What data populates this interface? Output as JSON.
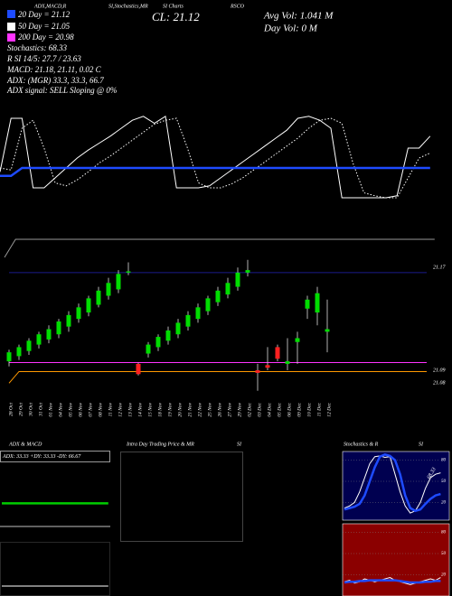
{
  "chart_data": [
    {
      "type": "candlestick",
      "annotations": [
        "20 Day = 21.12",
        "50 Day = 21.05",
        "200 Day = 20.98",
        "Stochastics: 68.33",
        "R SI 14/5: 27.7 / 23.63",
        "MACD: 21.18, 21.11, 0.02 C",
        "ADX: (MGR) 33.3, 33.3, 66.7",
        "ADX signal: SELL Sloping @ 0%",
        "CL: 21.12",
        "Avg Vol: 1.041 M",
        "Day Vol: 0 M",
        "ADX,MACD,R",
        "SI,Stochastics,MR",
        "SI Charts",
        "RSCO"
      ],
      "categories": [
        "28 Oct",
        "29 Oct",
        "30 Oct",
        "31 Oct",
        "01 Nov",
        "04 Nov",
        "05 Nov",
        "06 Nov",
        "07 Nov",
        "08 Nov",
        "11 Nov",
        "12 Nov",
        "13 Nov",
        "14 Nov",
        "15 Nov",
        "18 Nov",
        "19 Nov",
        "20 Nov",
        "21 Nov",
        "22 Nov",
        "25 Nov",
        "26 Nov",
        "27 Nov",
        "29 Nov",
        "02 Dec",
        "03 Dec",
        "04 Dec",
        "05 Dec",
        "06 Dec",
        "09 Dec",
        "10 Dec",
        "11 Dec",
        "12 Dec",
        null,
        null,
        null,
        null,
        null,
        null,
        null,
        null,
        null,
        null
      ],
      "open": [
        21.097,
        21.101,
        21.105,
        21.11,
        21.114,
        21.118,
        21.124,
        21.13,
        21.135,
        21.141,
        21.148,
        21.153,
        21.166,
        21.095,
        21.103,
        21.108,
        21.113,
        21.118,
        21.124,
        21.13,
        21.136,
        21.143,
        21.149,
        21.155,
        21.166,
        21.09,
        21.094,
        21.108,
        21.095,
        21.112,
        21.138,
        21.135,
        21.12,
        null,
        null,
        null,
        null,
        null,
        null,
        null,
        null,
        null,
        null
      ],
      "high": [
        21.106,
        21.11,
        21.115,
        21.12,
        21.125,
        21.13,
        21.136,
        21.142,
        21.148,
        21.155,
        21.162,
        21.168,
        21.174,
        21.096,
        21.112,
        21.118,
        21.124,
        21.13,
        21.136,
        21.142,
        21.148,
        21.155,
        21.162,
        21.17,
        21.176,
        21.095,
        21.108,
        21.11,
        21.115,
        21.12,
        21.148,
        21.155,
        21.145,
        null,
        null,
        null,
        null,
        null,
        null,
        null,
        null,
        null,
        null
      ],
      "low": [
        21.093,
        21.098,
        21.102,
        21.107,
        21.111,
        21.115,
        21.12,
        21.127,
        21.132,
        21.139,
        21.145,
        21.15,
        21.164,
        21.086,
        21.1,
        21.105,
        21.11,
        21.115,
        21.121,
        21.127,
        21.133,
        21.14,
        21.146,
        21.152,
        21.163,
        21.074,
        21.09,
        21.097,
        21.09,
        21.095,
        21.13,
        21.125,
        21.104,
        null,
        null,
        null,
        null,
        null,
        null,
        null,
        null,
        null,
        null
      ],
      "close": [
        21.104,
        21.108,
        21.113,
        21.118,
        21.122,
        21.128,
        21.133,
        21.139,
        21.146,
        21.152,
        21.158,
        21.165,
        21.167,
        21.087,
        21.11,
        21.116,
        21.121,
        21.127,
        21.133,
        21.139,
        21.146,
        21.152,
        21.158,
        21.166,
        21.168,
        21.088,
        21.092,
        21.099,
        21.097,
        21.115,
        21.145,
        21.15,
        21.122,
        null,
        null,
        null,
        null,
        null,
        null,
        null,
        null,
        null,
        null
      ],
      "up_color": "#00dd00",
      "down_color": "#ff2020",
      "series": [
        {
          "color": "#ff33ff",
          "values": [
            21.096,
            21.096,
            21.096,
            21.096,
            21.096,
            21.096,
            21.096,
            21.096,
            21.096,
            21.096,
            21.096,
            21.096,
            21.096,
            21.096,
            21.096,
            21.096,
            21.096,
            21.096,
            21.096,
            21.096,
            21.096,
            21.096,
            21.096,
            21.096,
            21.096,
            21.096,
            21.096,
            21.096,
            21.096,
            21.096,
            21.096,
            21.096,
            21.096,
            21.096,
            21.096,
            21.096,
            21.096,
            21.096,
            21.096,
            21.096,
            21.096,
            21.096,
            21.096
          ]
        },
        {
          "color": "#ff9900",
          "values": [
            21.08,
            21.089,
            21.089,
            21.089,
            21.089,
            21.089,
            21.089,
            21.089,
            21.089,
            21.089,
            21.089,
            21.089,
            21.089,
            21.089,
            21.089,
            21.089,
            21.089,
            21.089,
            21.089,
            21.089,
            21.089,
            21.089,
            21.089,
            21.089,
            21.089,
            21.089,
            21.089,
            21.089,
            21.089,
            21.089,
            21.089,
            21.089,
            21.089,
            21.089,
            21.089,
            21.089,
            21.089,
            21.089,
            21.089,
            21.089,
            21.089,
            21.089,
            21.089
          ]
        },
        {
          "color": "#1a1a8c",
          "values": [
            21.166,
            21.166,
            21.166,
            21.166,
            21.166,
            21.166,
            21.166,
            21.166,
            21.166,
            21.166,
            21.166,
            21.166,
            21.166,
            21.166,
            21.166,
            21.166,
            21.166,
            21.166,
            21.166,
            21.166,
            21.166,
            21.166,
            21.166,
            21.166,
            21.166,
            21.166,
            21.166,
            21.166,
            21.166,
            21.166,
            21.166,
            21.166,
            21.166,
            21.166,
            21.166,
            21.166,
            21.166,
            21.166,
            21.166,
            21.166,
            21.166,
            21.166,
            21.166
          ]
        }
      ],
      "ylim": [
        21.07,
        21.18
      ],
      "yticks": [
        21.17,
        21.09,
        21.08
      ]
    },
    {
      "type": "line",
      "ylim": [
        0,
        100
      ],
      "series": [
        {
          "color": "#ffffff",
          "values": [
            36,
            90,
            90,
            20,
            20,
            30,
            40,
            50,
            58,
            65,
            72,
            80,
            88,
            92,
            85,
            92,
            20,
            20,
            20,
            22,
            30,
            38,
            46,
            54,
            62,
            70,
            78,
            90,
            92,
            88,
            80,
            10,
            10,
            10,
            10,
            10,
            12,
            60,
            60,
            72
          ]
        },
        {
          "color": "#ffffff",
          "style": "dotted",
          "values": [
            40,
            38,
            80,
            88,
            60,
            25,
            22,
            28,
            36,
            45,
            52,
            60,
            68,
            76,
            84,
            88,
            90,
            60,
            25,
            20,
            20,
            24,
            30,
            38,
            46,
            54,
            62,
            70,
            80,
            88,
            90,
            85,
            45,
            15,
            12,
            10,
            10,
            30,
            50,
            55
          ]
        },
        {
          "color": "#1e4bff",
          "style": "thick",
          "values": [
            32,
            32,
            40,
            40,
            40,
            40,
            40,
            40,
            40,
            40,
            40,
            40,
            40,
            40,
            40,
            40,
            40,
            40,
            40,
            40,
            40,
            40,
            40,
            40,
            40,
            40,
            40,
            40,
            40,
            40,
            40,
            40,
            40,
            40,
            40,
            40,
            40,
            40,
            40,
            40
          ]
        }
      ]
    },
    {
      "type": "line",
      "ylim": [
        0,
        1
      ],
      "series": [
        {
          "color": "#999999",
          "values": [
            0,
            1,
            1,
            1,
            1,
            1,
            1,
            1,
            1,
            1,
            1,
            1,
            1,
            1,
            1,
            1,
            1,
            1,
            1,
            1,
            1,
            1,
            1,
            1,
            1,
            1,
            1,
            1,
            1,
            1,
            1,
            1,
            1,
            1,
            1,
            1,
            1,
            1,
            1,
            1
          ]
        }
      ]
    },
    {
      "type": "line",
      "title": "ADX  & MACD",
      "annotations": [
        "ADX: 33.33 +DY: 33.33 -DY: 66.67"
      ],
      "ylim": [
        0,
        100
      ],
      "series": [
        {
          "color": "#00cc00",
          "style": "thick",
          "values": [
            33.33,
            33.33,
            33.33,
            33.33,
            33.33,
            33.33,
            33.33,
            33.33,
            33.33,
            33.33,
            33.33,
            33.33,
            33.33,
            33.33,
            33.33,
            33.33,
            33.33,
            33.33,
            33.33,
            33.33
          ]
        }
      ]
    },
    {
      "type": "line",
      "ylim": [
        0,
        0.1
      ],
      "series": [
        {
          "color": "#ffffff",
          "values": [
            0.02,
            0.02,
            0.02,
            0.02,
            0.02,
            0.02,
            0.02,
            0.02,
            0.02,
            0.02,
            0.02,
            0.02,
            0.02,
            0.02,
            0.02,
            0.02,
            0.02,
            0.02,
            0.02,
            0.02
          ]
        }
      ]
    },
    {
      "type": "line",
      "title": "Intra Day Trading Price  & MR",
      "annotations": [
        "SI"
      ],
      "series": []
    },
    {
      "type": "line",
      "title": "Stochastics & R",
      "annotations": [
        "SI",
        "68.33"
      ],
      "background": "#000050",
      "grid": true,
      "ylim": [
        0,
        100
      ],
      "yticks": [
        80,
        50,
        20
      ],
      "series": [
        {
          "color": "#ffffff",
          "values": [
            12,
            15,
            20,
            35,
            55,
            75,
            85,
            86,
            84,
            85,
            60,
            35,
            15,
            5,
            8,
            20,
            40,
            55,
            60,
            62
          ]
        },
        {
          "color": "#1e4bff",
          "style": "thick",
          "values": [
            10,
            12,
            14,
            18,
            30,
            50,
            70,
            85,
            88,
            86,
            80,
            60,
            30,
            12,
            8,
            10,
            18,
            25,
            30,
            32
          ]
        }
      ]
    },
    {
      "type": "line",
      "background": "#8b0000",
      "grid": true,
      "ylim": [
        0,
        100
      ],
      "yticks": [
        80,
        50,
        20
      ],
      "series": [
        {
          "color": "#ffffff",
          "values": [
            10,
            12,
            8,
            10,
            14,
            12,
            10,
            12,
            14,
            16,
            12,
            10,
            8,
            6,
            8,
            10,
            12,
            14,
            12,
            16
          ]
        },
        {
          "color": "#1e4bff",
          "style": "thick",
          "values": [
            9,
            10,
            10,
            11,
            11,
            12,
            12,
            12,
            12,
            12,
            12,
            11,
            10,
            9,
            9,
            9,
            10,
            10,
            11,
            11
          ]
        }
      ]
    }
  ]
}
